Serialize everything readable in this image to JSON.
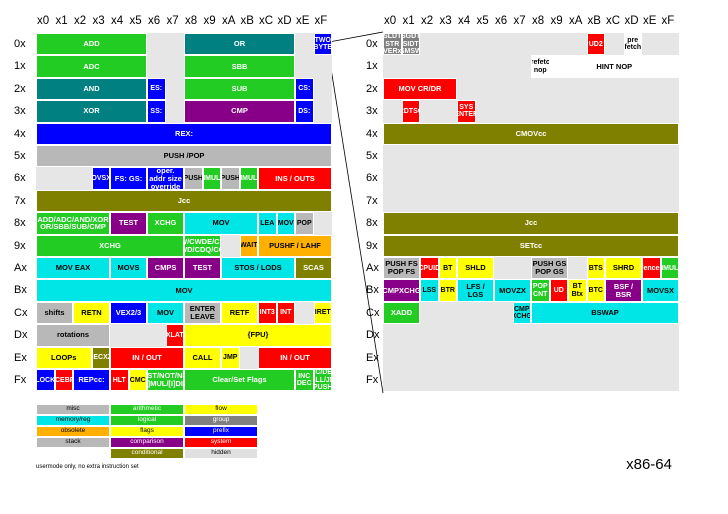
{
  "col_headers": [
    "x0",
    "x1",
    "x2",
    "x3",
    "x4",
    "x5",
    "x6",
    "x7",
    "x8",
    "x9",
    "xA",
    "xB",
    "xC",
    "xD",
    "xE",
    "xF"
  ],
  "row_headers": [
    "0x",
    "1x",
    "2x",
    "3x",
    "4x",
    "5x",
    "6x",
    "7x",
    "8x",
    "9x",
    "Ax",
    "Bx",
    "Cx",
    "Dx",
    "Ex",
    "Fx"
  ],
  "colors": {
    "misc": "#b8b8b8",
    "arith": "#22cc22",
    "flow": "#ffff00",
    "mem": "#00e6e6",
    "logic": "#22cc22",
    "group": "#808080",
    "flags": "#ffff00",
    "prefix": "#0000ff",
    "obsolete": "#ffb000",
    "system": "#ff0000",
    "stack": "#b8b8b8",
    "cond": "#808000",
    "hidden": "#e0e0e0",
    "compare": "#880088",
    "white": "#ffffff"
  },
  "one_byte": [
    {
      "r": 0,
      "c": 0,
      "w": 6,
      "t": "ADD",
      "k": "arith"
    },
    {
      "r": 0,
      "c": 8,
      "w": 6,
      "t": "OR",
      "k": "teal"
    },
    {
      "r": 0,
      "c": 15,
      "w": 1,
      "t": "TWO BYTE",
      "k": "prefix"
    },
    {
      "r": 1,
      "c": 0,
      "w": 6,
      "t": "ADC",
      "k": "arith"
    },
    {
      "r": 1,
      "c": 8,
      "w": 6,
      "t": "SBB",
      "k": "arith"
    },
    {
      "r": 2,
      "c": 0,
      "w": 6,
      "t": "AND",
      "k": "teal"
    },
    {
      "r": 2,
      "c": 6,
      "w": 1,
      "t": "ES:",
      "k": "prefix"
    },
    {
      "r": 2,
      "c": 8,
      "w": 6,
      "t": "SUB",
      "k": "arith"
    },
    {
      "r": 2,
      "c": 14,
      "w": 1,
      "t": "CS:",
      "k": "prefix"
    },
    {
      "r": 3,
      "c": 0,
      "w": 6,
      "t": "XOR",
      "k": "teal"
    },
    {
      "r": 3,
      "c": 6,
      "w": 1,
      "t": "SS:",
      "k": "prefix"
    },
    {
      "r": 3,
      "c": 8,
      "w": 6,
      "t": "CMP",
      "k": "compare"
    },
    {
      "r": 3,
      "c": 14,
      "w": 1,
      "t": "DS:",
      "k": "prefix"
    },
    {
      "r": 4,
      "c": 0,
      "w": 16,
      "t": "REX:",
      "k": "prefix"
    },
    {
      "r": 5,
      "c": 0,
      "w": 16,
      "t": "PUSH /POP",
      "k": "misc"
    },
    {
      "r": 6,
      "c": 3,
      "w": 1,
      "t": "MOVSXD",
      "k": "prefix"
    },
    {
      "r": 6,
      "c": 4,
      "w": 2,
      "t": "FS: GS:",
      "k": "prefix"
    },
    {
      "r": 6,
      "c": 6,
      "w": 2,
      "t": "oper. addr size override",
      "k": "prefix"
    },
    {
      "r": 6,
      "c": 8,
      "w": 1,
      "t": "PUSH",
      "k": "stack"
    },
    {
      "r": 6,
      "c": 9,
      "w": 1,
      "t": "IMUL",
      "k": "arith"
    },
    {
      "r": 6,
      "c": 10,
      "w": 1,
      "t": "PUSH",
      "k": "stack"
    },
    {
      "r": 6,
      "c": 11,
      "w": 1,
      "t": "IMUL",
      "k": "arith"
    },
    {
      "r": 6,
      "c": 12,
      "w": 4,
      "t": "INS / OUTS",
      "k": "system"
    },
    {
      "r": 7,
      "c": 0,
      "w": 16,
      "t": "Jcc",
      "k": "cond"
    },
    {
      "r": 8,
      "c": 0,
      "w": 4,
      "t": "ADD/ADC/AND/XOR OR/SBB/SUB/CMP",
      "k": "arith"
    },
    {
      "r": 8,
      "c": 4,
      "w": 2,
      "t": "TEST",
      "k": "compare"
    },
    {
      "r": 8,
      "c": 6,
      "w": 2,
      "t": "XCHG",
      "k": "arith"
    },
    {
      "r": 8,
      "c": 8,
      "w": 4,
      "t": "MOV",
      "k": "mem"
    },
    {
      "r": 8,
      "c": 12,
      "w": 1,
      "t": "LEA",
      "k": "mem"
    },
    {
      "r": 8,
      "c": 13,
      "w": 1,
      "t": "MOV",
      "k": "mem"
    },
    {
      "r": 8,
      "c": 14,
      "w": 1,
      "t": "POP",
      "k": "stack"
    },
    {
      "r": 9,
      "c": 0,
      "w": 8,
      "t": "XCHG",
      "k": "arith"
    },
    {
      "r": 9,
      "c": 8,
      "w": 2,
      "t": "CBW/CWDE/CDQE CWD/CDQ/CQO",
      "k": "arith"
    },
    {
      "r": 9,
      "c": 11,
      "w": 1,
      "t": "WAIT",
      "k": "obsolete"
    },
    {
      "r": 9,
      "c": 12,
      "w": 4,
      "t": "PUSHF / LAHF",
      "k": "obsolete"
    },
    {
      "r": 10,
      "c": 0,
      "w": 4,
      "t": "MOV EAX",
      "k": "mem"
    },
    {
      "r": 10,
      "c": 4,
      "w": 2,
      "t": "MOVS",
      "k": "mem"
    },
    {
      "r": 10,
      "c": 6,
      "w": 2,
      "t": "CMPS",
      "k": "compare"
    },
    {
      "r": 10,
      "c": 8,
      "w": 2,
      "t": "TEST",
      "k": "compare"
    },
    {
      "r": 10,
      "c": 10,
      "w": 4,
      "t": "STOS / LODS",
      "k": "mem"
    },
    {
      "r": 10,
      "c": 14,
      "w": 2,
      "t": "SCAS",
      "k": "cond"
    },
    {
      "r": 11,
      "c": 0,
      "w": 16,
      "t": "MOV",
      "k": "mem"
    },
    {
      "r": 12,
      "c": 0,
      "w": 2,
      "t": "shifts",
      "k": "misc"
    },
    {
      "r": 12,
      "c": 2,
      "w": 2,
      "t": "RETN",
      "k": "flow"
    },
    {
      "r": 12,
      "c": 4,
      "w": 2,
      "t": "VEX2/3",
      "k": "prefix"
    },
    {
      "r": 12,
      "c": 6,
      "w": 2,
      "t": "MOV",
      "k": "mem"
    },
    {
      "r": 12,
      "c": 8,
      "w": 2,
      "t": "ENTER LEAVE",
      "k": "stack"
    },
    {
      "r": 12,
      "c": 10,
      "w": 2,
      "t": "RETF",
      "k": "flow"
    },
    {
      "r": 12,
      "c": 12,
      "w": 1,
      "t": "INT3",
      "k": "system"
    },
    {
      "r": 12,
      "c": 13,
      "w": 1,
      "t": "INT",
      "k": "system"
    },
    {
      "r": 12,
      "c": 15,
      "w": 1,
      "t": "IRET",
      "k": "flow"
    },
    {
      "r": 13,
      "c": 0,
      "w": 4,
      "t": "rotations",
      "k": "misc"
    },
    {
      "r": 13,
      "c": 7,
      "w": 1,
      "t": "XLAT",
      "k": "system"
    },
    {
      "r": 13,
      "c": 8,
      "w": 8,
      "t": "{FPU}",
      "k": "flow"
    },
    {
      "r": 14,
      "c": 0,
      "w": 3,
      "t": "LOOPs",
      "k": "flow"
    },
    {
      "r": 14,
      "c": 3,
      "w": 1,
      "t": "JECXZ",
      "k": "cond"
    },
    {
      "r": 14,
      "c": 4,
      "w": 4,
      "t": "IN / OUT",
      "k": "system"
    },
    {
      "r": 14,
      "c": 8,
      "w": 2,
      "t": "CALL",
      "k": "flow"
    },
    {
      "r": 14,
      "c": 10,
      "w": 1,
      "t": "JMP",
      "k": "flow"
    },
    {
      "r": 14,
      "c": 12,
      "w": 4,
      "t": "IN / OUT",
      "k": "system"
    },
    {
      "r": 15,
      "c": 0,
      "w": 1,
      "t": "LOCK",
      "k": "prefix"
    },
    {
      "r": 15,
      "c": 1,
      "w": 1,
      "t": "ICEBP",
      "k": "system"
    },
    {
      "r": 15,
      "c": 2,
      "w": 2,
      "t": "REPcc:",
      "k": "prefix"
    },
    {
      "r": 15,
      "c": 4,
      "w": 1,
      "t": "HLT",
      "k": "system"
    },
    {
      "r": 15,
      "c": 5,
      "w": 1,
      "t": "CMC",
      "k": "flags"
    },
    {
      "r": 15,
      "c": 6,
      "w": 2,
      "t": "TEST/NOT/NEG [I]MUL/[I]DIV",
      "k": "arith"
    },
    {
      "r": 15,
      "c": 8,
      "w": 6,
      "t": "Clear/Set Flags",
      "k": "arith"
    },
    {
      "r": 15,
      "c": 14,
      "w": 1,
      "t": "INC DEC",
      "k": "arith"
    },
    {
      "r": 15,
      "c": 15,
      "w": 1,
      "t": "INC/DEC CALL/JMP PUSH",
      "k": "arith"
    }
  ],
  "two_byte": [
    {
      "r": 0,
      "c": 0,
      "w": 1,
      "t": "SLDT STR VERx",
      "k": "group"
    },
    {
      "r": 0,
      "c": 1,
      "w": 1,
      "t": "SGDT SIDT SMSW",
      "k": "group"
    },
    {
      "r": 0,
      "c": 11,
      "w": 1,
      "t": "UD2",
      "k": "system"
    },
    {
      "r": 0,
      "c": 13,
      "w": 1,
      "t": "pre fetch",
      "k": "white"
    },
    {
      "r": 1,
      "c": 8,
      "w": 1,
      "t": "prefetch nop",
      "k": "white"
    },
    {
      "r": 1,
      "c": 9,
      "w": 7,
      "t": "HINT NOP",
      "k": "white"
    },
    {
      "r": 2,
      "c": 0,
      "w": 4,
      "t": "MOV CR/DR",
      "k": "system"
    },
    {
      "r": 3,
      "c": 1,
      "w": 1,
      "t": "RDTSC",
      "k": "system"
    },
    {
      "r": 3,
      "c": 4,
      "w": 1,
      "t": "SYS ENTER",
      "k": "system"
    },
    {
      "r": 4,
      "c": 0,
      "w": 16,
      "t": "CMOVcc",
      "k": "cond"
    },
    {
      "r": 8,
      "c": 0,
      "w": 16,
      "t": "Jcc",
      "k": "cond"
    },
    {
      "r": 9,
      "c": 0,
      "w": 16,
      "t": "SETcc",
      "k": "cond"
    },
    {
      "r": 10,
      "c": 0,
      "w": 2,
      "t": "PUSH FS POP FS",
      "k": "stack"
    },
    {
      "r": 10,
      "c": 2,
      "w": 1,
      "t": "CPUID",
      "k": "system"
    },
    {
      "r": 10,
      "c": 3,
      "w": 1,
      "t": "BT",
      "k": "flags"
    },
    {
      "r": 10,
      "c": 4,
      "w": 2,
      "t": "SHLD",
      "k": "flags"
    },
    {
      "r": 10,
      "c": 8,
      "w": 2,
      "t": "PUSH GS POP GS",
      "k": "stack"
    },
    {
      "r": 10,
      "c": 11,
      "w": 1,
      "t": "BTS",
      "k": "flags"
    },
    {
      "r": 10,
      "c": 12,
      "w": 2,
      "t": "SHRD",
      "k": "flags"
    },
    {
      "r": 10,
      "c": 14,
      "w": 1,
      "t": "{Fences}",
      "k": "system"
    },
    {
      "r": 10,
      "c": 15,
      "w": 1,
      "t": "IMUL",
      "k": "arith"
    },
    {
      "r": 11,
      "c": 0,
      "w": 2,
      "t": "CMPXCHG",
      "k": "compare"
    },
    {
      "r": 11,
      "c": 2,
      "w": 1,
      "t": "LSS",
      "k": "mem"
    },
    {
      "r": 11,
      "c": 3,
      "w": 1,
      "t": "BTR",
      "k": "flags"
    },
    {
      "r": 11,
      "c": 4,
      "w": 2,
      "t": "LFS / LGS",
      "k": "mem"
    },
    {
      "r": 11,
      "c": 6,
      "w": 2,
      "t": "MOVZX",
      "k": "mem"
    },
    {
      "r": 11,
      "c": 8,
      "w": 1,
      "t": "POP CNT",
      "k": "arith"
    },
    {
      "r": 11,
      "c": 9,
      "w": 1,
      "t": "UD",
      "k": "system"
    },
    {
      "r": 11,
      "c": 10,
      "w": 1,
      "t": "BT Btx",
      "k": "flags"
    },
    {
      "r": 11,
      "c": 11,
      "w": 1,
      "t": "BTC",
      "k": "flags"
    },
    {
      "r": 11,
      "c": 12,
      "w": 2,
      "t": "BSF / BSR",
      "k": "compare"
    },
    {
      "r": 11,
      "c": 14,
      "w": 2,
      "t": "MOVSX",
      "k": "mem"
    },
    {
      "r": 12,
      "c": 0,
      "w": 2,
      "t": "XADD",
      "k": "arith"
    },
    {
      "r": 12,
      "c": 7,
      "w": 1,
      "t": "CMP XCHG",
      "k": "mem"
    },
    {
      "r": 12,
      "c": 8,
      "w": 8,
      "t": "BSWAP",
      "k": "mem"
    }
  ],
  "legend": [
    {
      "t": "misc",
      "k": "misc"
    },
    {
      "t": "arithmetic",
      "k": "arith"
    },
    {
      "t": "flow",
      "k": "flow"
    },
    {
      "t": "memory/reg",
      "k": "mem"
    },
    {
      "t": "logical",
      "k": "logic"
    },
    {
      "t": "group",
      "k": "group"
    },
    {
      "t": "obsolete",
      "k": "obsolete"
    },
    {
      "t": "flags",
      "k": "flags"
    },
    {
      "t": "prefix",
      "k": "prefix"
    },
    {
      "t": "stack",
      "k": "stack"
    },
    {
      "t": "comparison",
      "k": "compare"
    },
    {
      "t": "system",
      "k": "system"
    },
    {
      "t": "",
      "k": "white"
    },
    {
      "t": "conditional",
      "k": "cond"
    },
    {
      "t": "hidden",
      "k": "hidden"
    }
  ],
  "note": "usermode only, no extra instruction set",
  "title": "x86-64"
}
